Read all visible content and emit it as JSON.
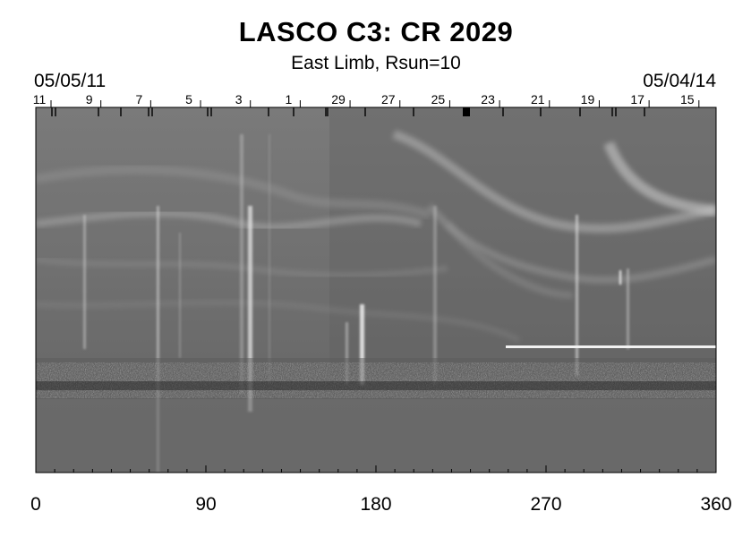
{
  "header": {
    "title": "LASCO C3: CR 2029",
    "subtitle": "East Limb, Rsun=10",
    "date_start": "05/05/11",
    "date_end": "05/04/14"
  },
  "chart_data": {
    "type": "heatmap",
    "xlim": [
      0,
      360
    ],
    "xticks": [
      {
        "value": 0,
        "label": "0"
      },
      {
        "value": 90,
        "label": "90"
      },
      {
        "value": 180,
        "label": "180"
      },
      {
        "value": 270,
        "label": "270"
      },
      {
        "value": 360,
        "label": "360"
      }
    ],
    "day_labels": [
      "11",
      "9",
      "7",
      "5",
      "3",
      "1",
      "29",
      "27",
      "25",
      "23",
      "21",
      "19",
      "17",
      "15"
    ],
    "colormap": "grayscale",
    "background_color": "#6e6e6e"
  }
}
